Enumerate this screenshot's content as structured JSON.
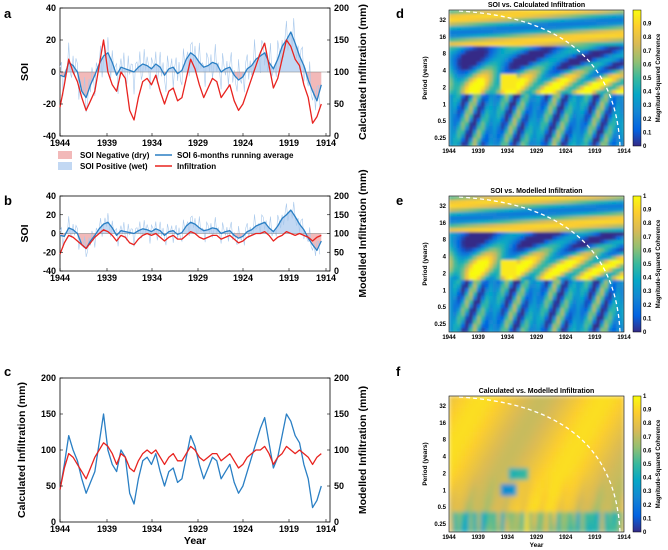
{
  "panel_letters": [
    "a",
    "b",
    "c",
    "d",
    "e",
    "f"
  ],
  "colors": {
    "soi": "#2a7fc4",
    "soi_light": "#a9c9ec",
    "infil": "#e8231f",
    "neg_fill": "#f2b9b9",
    "pos_fill": "#c2d8f3"
  },
  "legend": {
    "neg": "SOI Negative (dry)",
    "pos": "SOI Positive (wet)",
    "soi6": "SOI 6-months running average",
    "infil": "Infiltration"
  },
  "chart_data": [
    {
      "id": "a",
      "type": "line",
      "x_ticks": [
        "1944",
        "1939",
        "1934",
        "1929",
        "1924",
        "1919",
        "1914"
      ],
      "xlim": [
        1944,
        1913
      ],
      "ylabel": "SOI",
      "ylim": [
        -40,
        40
      ],
      "y_ticks": [
        "40",
        "20",
        "0",
        "-20",
        "-40"
      ],
      "y2label": "Calculated Infiltration (mm)",
      "y2lim": [
        0,
        200
      ],
      "y2_ticks": [
        "200",
        "150",
        "100",
        "50",
        "0"
      ],
      "series": [
        {
          "name": "SOI 6-months running average",
          "x": [
            1944,
            1943.5,
            1943,
            1942.5,
            1942,
            1941.5,
            1941,
            1940.5,
            1940,
            1939.5,
            1939,
            1938.5,
            1938,
            1937.5,
            1937,
            1936.5,
            1936,
            1935.5,
            1935,
            1934.5,
            1934,
            1933.5,
            1933,
            1932.5,
            1932,
            1931.5,
            1931,
            1930.5,
            1930,
            1929.5,
            1929,
            1928.5,
            1928,
            1927.5,
            1927,
            1926.5,
            1926,
            1925.5,
            1925,
            1924.5,
            1924,
            1923.5,
            1923,
            1922.5,
            1922,
            1921.5,
            1921,
            1920.5,
            1920,
            1919.5,
            1919,
            1918.5,
            1918,
            1917.5,
            1917,
            1916.5,
            1916,
            1915.5,
            1915,
            1914.5,
            1914
          ],
          "values": [
            -2,
            -3,
            6,
            4,
            0,
            -12,
            -16,
            -8,
            -2,
            5,
            10,
            12,
            6,
            -2,
            3,
            2,
            1,
            0,
            3,
            5,
            4,
            2,
            5,
            3,
            -2,
            2,
            3,
            -1,
            1,
            8,
            12,
            10,
            6,
            3,
            4,
            6,
            5,
            0,
            2,
            3,
            -2,
            -5,
            -3,
            2,
            4,
            8,
            10,
            12,
            6,
            2,
            8,
            16,
            20,
            25,
            18,
            10,
            4,
            -5,
            -12,
            -18,
            -8
          ]
        },
        {
          "name": "Infiltration",
          "axis": "right",
          "x": [
            1944,
            1943.5,
            1943,
            1942.5,
            1942,
            1941.5,
            1941,
            1940.5,
            1940,
            1939.5,
            1939,
            1938.5,
            1938,
            1937.5,
            1937,
            1936.5,
            1936,
            1935.5,
            1935,
            1934.5,
            1934,
            1933.5,
            1933,
            1932.5,
            1932,
            1931.5,
            1931,
            1930.5,
            1930,
            1929.5,
            1929,
            1928.5,
            1928,
            1927.5,
            1927,
            1926.5,
            1926,
            1925.5,
            1925,
            1924.5,
            1924,
            1923.5,
            1923,
            1922.5,
            1922,
            1921.5,
            1921,
            1920.5,
            1920,
            1919.5,
            1919,
            1918.5,
            1918,
            1917.5,
            1917,
            1916.5,
            1916,
            1915.5,
            1915,
            1914.5,
            1914
          ],
          "values": [
            45,
            80,
            120,
            100,
            85,
            60,
            40,
            55,
            70,
            110,
            150,
            100,
            80,
            70,
            100,
            90,
            40,
            25,
            60,
            85,
            90,
            80,
            95,
            70,
            50,
            70,
            75,
            55,
            60,
            90,
            120,
            105,
            80,
            60,
            75,
            90,
            85,
            60,
            70,
            80,
            55,
            40,
            50,
            70,
            90,
            110,
            130,
            145,
            110,
            75,
            90,
            120,
            150,
            140,
            120,
            110,
            80,
            60,
            20,
            30,
            50
          ]
        }
      ]
    },
    {
      "id": "b",
      "type": "line",
      "x_ticks": [
        "1944",
        "1939",
        "1934",
        "1929",
        "1924",
        "1919",
        "1914"
      ],
      "xlim": [
        1944,
        1913
      ],
      "ylabel": "SOI",
      "ylim": [
        -40,
        40
      ],
      "y_ticks": [
        "40",
        "20",
        "0",
        "-20",
        "-40"
      ],
      "y2label": "Modelled Infiltration (mm)",
      "y2lim": [
        0,
        200
      ],
      "y2_ticks": [
        "200",
        "150",
        "100",
        "50",
        "0"
      ],
      "series": [
        {
          "name": "SOI 6-months running average",
          "x": [
            1944,
            1943.5,
            1943,
            1942.5,
            1942,
            1941.5,
            1941,
            1940.5,
            1940,
            1939.5,
            1939,
            1938.5,
            1938,
            1937.5,
            1937,
            1936.5,
            1936,
            1935.5,
            1935,
            1934.5,
            1934,
            1933.5,
            1933,
            1932.5,
            1932,
            1931.5,
            1931,
            1930.5,
            1930,
            1929.5,
            1929,
            1928.5,
            1928,
            1927.5,
            1927,
            1926.5,
            1926,
            1925.5,
            1925,
            1924.5,
            1924,
            1923.5,
            1923,
            1922.5,
            1922,
            1921.5,
            1921,
            1920.5,
            1920,
            1919.5,
            1919,
            1918.5,
            1918,
            1917.5,
            1917,
            1916.5,
            1916,
            1915.5,
            1915,
            1914.5,
            1914
          ],
          "values": [
            -2,
            -3,
            6,
            4,
            0,
            -12,
            -16,
            -8,
            -2,
            5,
            10,
            12,
            6,
            -2,
            3,
            2,
            1,
            0,
            3,
            5,
            4,
            2,
            5,
            3,
            -2,
            2,
            3,
            -1,
            1,
            8,
            12,
            10,
            6,
            3,
            4,
            6,
            5,
            0,
            2,
            3,
            -2,
            -5,
            -3,
            2,
            4,
            8,
            10,
            12,
            6,
            2,
            8,
            16,
            20,
            25,
            18,
            10,
            4,
            -5,
            -12,
            -18,
            -8
          ]
        },
        {
          "name": "Infiltration",
          "axis": "right",
          "x": [
            1944,
            1943.5,
            1943,
            1942.5,
            1942,
            1941.5,
            1941,
            1940.5,
            1940,
            1939.5,
            1939,
            1938.5,
            1938,
            1937.5,
            1937,
            1936.5,
            1936,
            1935.5,
            1935,
            1934.5,
            1934,
            1933.5,
            1933,
            1932.5,
            1932,
            1931.5,
            1931,
            1930.5,
            1930,
            1929.5,
            1929,
            1928.5,
            1928,
            1927.5,
            1927,
            1926.5,
            1926,
            1925.5,
            1925,
            1924.5,
            1924,
            1923.5,
            1923,
            1922.5,
            1922,
            1921.5,
            1921,
            1920.5,
            1920,
            1919.5,
            1919,
            1918.5,
            1918,
            1917.5,
            1917,
            1916.5,
            1916,
            1915.5,
            1915,
            1914.5,
            1914
          ],
          "values": [
            45,
            75,
            95,
            90,
            80,
            70,
            60,
            75,
            90,
            100,
            110,
            105,
            95,
            80,
            95,
            90,
            75,
            70,
            85,
            95,
            100,
            95,
            100,
            90,
            80,
            90,
            95,
            85,
            85,
            95,
            105,
            100,
            90,
            85,
            90,
            95,
            95,
            85,
            90,
            95,
            85,
            75,
            80,
            90,
            95,
            100,
            100,
            105,
            95,
            80,
            90,
            95,
            105,
            100,
            95,
            100,
            95,
            90,
            80,
            90,
            95
          ]
        }
      ]
    },
    {
      "id": "c",
      "type": "line",
      "x_ticks": [
        "1944",
        "1939",
        "1934",
        "1929",
        "1924",
        "1919",
        "1914"
      ],
      "xlim": [
        1944,
        1913
      ],
      "xlabel": "Year",
      "ylabel": "Calculated Infiltration (mm)",
      "ylim": [
        0,
        200
      ],
      "y_ticks": [
        "200",
        "150",
        "100",
        "50",
        "0"
      ],
      "y2label": "Modelled Infiltration (mm)",
      "y2lim": [
        0,
        200
      ],
      "y2_ticks": [
        "200",
        "150",
        "100",
        "50",
        "0"
      ],
      "series": [
        {
          "name": "Calculated Infiltration",
          "x": [
            1944,
            1943.5,
            1943,
            1942.5,
            1942,
            1941.5,
            1941,
            1940.5,
            1940,
            1939.5,
            1939,
            1938.5,
            1938,
            1937.5,
            1937,
            1936.5,
            1936,
            1935.5,
            1935,
            1934.5,
            1934,
            1933.5,
            1933,
            1932.5,
            1932,
            1931.5,
            1931,
            1930.5,
            1930,
            1929.5,
            1929,
            1928.5,
            1928,
            1927.5,
            1927,
            1926.5,
            1926,
            1925.5,
            1925,
            1924.5,
            1924,
            1923.5,
            1923,
            1922.5,
            1922,
            1921.5,
            1921,
            1920.5,
            1920,
            1919.5,
            1919,
            1918.5,
            1918,
            1917.5,
            1917,
            1916.5,
            1916,
            1915.5,
            1915,
            1914.5,
            1914
          ],
          "values": [
            45,
            80,
            120,
            100,
            85,
            60,
            40,
            55,
            70,
            110,
            150,
            100,
            80,
            70,
            100,
            90,
            40,
            25,
            60,
            85,
            90,
            80,
            95,
            70,
            50,
            70,
            75,
            55,
            60,
            90,
            120,
            105,
            80,
            60,
            75,
            90,
            85,
            60,
            70,
            80,
            55,
            40,
            50,
            70,
            90,
            110,
            130,
            145,
            110,
            75,
            90,
            120,
            150,
            140,
            120,
            110,
            80,
            60,
            20,
            30,
            50
          ]
        },
        {
          "name": "Modelled Infiltration",
          "axis": "right",
          "x": [
            1944,
            1943.5,
            1943,
            1942.5,
            1942,
            1941.5,
            1941,
            1940.5,
            1940,
            1939.5,
            1939,
            1938.5,
            1938,
            1937.5,
            1937,
            1936.5,
            1936,
            1935.5,
            1935,
            1934.5,
            1934,
            1933.5,
            1933,
            1932.5,
            1932,
            1931.5,
            1931,
            1930.5,
            1930,
            1929.5,
            1929,
            1928.5,
            1928,
            1927.5,
            1927,
            1926.5,
            1926,
            1925.5,
            1925,
            1924.5,
            1924,
            1923.5,
            1923,
            1922.5,
            1922,
            1921.5,
            1921,
            1920.5,
            1920,
            1919.5,
            1919,
            1918.5,
            1918,
            1917.5,
            1917,
            1916.5,
            1916,
            1915.5,
            1915,
            1914.5,
            1914
          ],
          "values": [
            45,
            75,
            95,
            90,
            80,
            70,
            60,
            75,
            90,
            100,
            110,
            105,
            95,
            80,
            95,
            90,
            75,
            70,
            85,
            95,
            100,
            95,
            100,
            90,
            80,
            90,
            95,
            85,
            85,
            95,
            105,
            100,
            90,
            85,
            90,
            95,
            95,
            85,
            90,
            95,
            85,
            75,
            80,
            90,
            95,
            100,
            100,
            105,
            95,
            80,
            90,
            95,
            105,
            100,
            95,
            100,
            95,
            90,
            80,
            90,
            95
          ]
        }
      ]
    },
    {
      "id": "d",
      "type": "heatmap",
      "title": "SOI vs. Calculated Infiltration",
      "x_ticks": [
        "1944",
        "1939",
        "1934",
        "1929",
        "1924",
        "1919",
        "1914"
      ],
      "ylabel": "Period (years)",
      "y_ticks": [
        "32",
        "16",
        "8",
        "4",
        "2",
        "1",
        "0.5",
        "0.25"
      ],
      "colorbar_label": "Magnitude-Squared Coherence",
      "colorbar_ticks": [
        "0.9",
        "0.8",
        "0.7",
        "0.6",
        "0.5",
        "0.4",
        "0.3",
        "0.2",
        "0.1",
        "0"
      ],
      "zlim": [
        0,
        1
      ]
    },
    {
      "id": "e",
      "type": "heatmap",
      "title": "SOI vs. Modelled Infiltration",
      "x_ticks": [
        "1944",
        "1939",
        "1934",
        "1929",
        "1924",
        "1919",
        "1914"
      ],
      "ylabel": "Period (years)",
      "y_ticks": [
        "32",
        "16",
        "8",
        "4",
        "2",
        "1",
        "0.5",
        "0.25"
      ],
      "colorbar_label": "Magnitude-Squared Coherence",
      "colorbar_ticks": [
        "1",
        "0.9",
        "0.8",
        "0.7",
        "0.6",
        "0.5",
        "0.4",
        "0.3",
        "0.2",
        "0.1",
        "0"
      ],
      "zlim": [
        0,
        1
      ]
    },
    {
      "id": "f",
      "type": "heatmap",
      "title": "Calculated vs. Modelled Infiltration",
      "x_ticks": [
        "1944",
        "1939",
        "1934",
        "1929",
        "1924",
        "1919",
        "1914"
      ],
      "xlabel": "Year",
      "ylabel": "Period (years)",
      "y_ticks": [
        "32",
        "16",
        "8",
        "4",
        "2",
        "1",
        "0.5",
        "0.25"
      ],
      "colorbar_label": "Magnitude-Squared Coherence",
      "colorbar_ticks": [
        "1",
        "0.9",
        "0.8",
        "0.7",
        "0.6",
        "0.5",
        "0.4",
        "0.3",
        "0.2",
        "0.1",
        "0"
      ],
      "zlim": [
        0,
        1
      ]
    }
  ]
}
